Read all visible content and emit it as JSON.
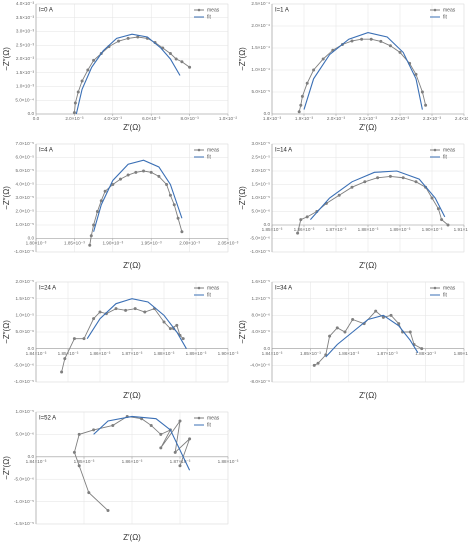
{
  "chart_data": [
    {
      "type": "line",
      "title": "I=0 A",
      "xlabel": "Z′(Ω)",
      "ylabel": "−Z″(Ω)",
      "xlim": [
        0,
        0.01
      ],
      "xticks": [
        {
          "value": 0,
          "label": "0.0"
        },
        {
          "value": 0.002,
          "label": "2.0×10⁻³"
        },
        {
          "value": 0.004,
          "label": "4.0×10⁻³"
        },
        {
          "value": 0.006,
          "label": "6.0×10⁻³"
        },
        {
          "value": 0.008,
          "label": "8.0×10⁻³"
        },
        {
          "value": 0.01,
          "label": "1.0×10⁻²"
        }
      ],
      "ylim": [
        0,
        0.004
      ],
      "yticks": [
        {
          "value": 0,
          "label": "0.0"
        },
        {
          "value": 0.0005,
          "label": "5.0×10⁻⁴"
        },
        {
          "value": 0.001,
          "label": "1.0×10⁻³"
        },
        {
          "value": 0.0015,
          "label": "1.5×10⁻³"
        },
        {
          "value": 0.002,
          "label": "2.0×10⁻³"
        },
        {
          "value": 0.0025,
          "label": "2.5×10⁻³"
        },
        {
          "value": 0.003,
          "label": "3.0×10⁻³"
        },
        {
          "value": 0.0035,
          "label": "3.5×10⁻³"
        },
        {
          "value": 0.004,
          "label": "4.0×10⁻³"
        }
      ],
      "grid": true,
      "legend": "upper right",
      "series": [
        {
          "name": "meas",
          "color": "#7f7f7f",
          "markers": true,
          "x": [
            0.002,
            0.00205,
            0.0022,
            0.0024,
            0.0027,
            0.003,
            0.0034,
            0.0038,
            0.0043,
            0.0048,
            0.0053,
            0.0058,
            0.0062,
            0.0066,
            0.007,
            0.0073,
            0.0076,
            0.008
          ],
          "values": [
            5e-05,
            0.0004,
            0.0008,
            0.0012,
            0.0016,
            0.00195,
            0.0022,
            0.00245,
            0.00265,
            0.00275,
            0.0028,
            0.00275,
            0.0026,
            0.0024,
            0.0022,
            0.002,
            0.0019,
            0.0017
          ]
        },
        {
          "name": "fit",
          "color": "#3a6fb5",
          "markers": false,
          "x": [
            0.0021,
            0.0024,
            0.0029,
            0.0035,
            0.0042,
            0.005,
            0.0058,
            0.0065,
            0.007,
            0.0075
          ],
          "values": [
            0.0,
            0.0009,
            0.0017,
            0.0023,
            0.00275,
            0.0029,
            0.0028,
            0.0024,
            0.002,
            0.0014
          ]
        }
      ]
    },
    {
      "type": "line",
      "title": "I=1 A",
      "xlabel": "Z′(Ω)",
      "ylabel": "−Z″(Ω)",
      "xlim": [
        0.0018,
        0.0024
      ],
      "xticks": [
        {
          "value": 0.0018,
          "label": "1.8×10⁻³"
        },
        {
          "value": 0.0019,
          "label": "1.9×10⁻³"
        },
        {
          "value": 0.002,
          "label": "2.0×10⁻³"
        },
        {
          "value": 0.0021,
          "label": "2.1×10⁻³"
        },
        {
          "value": 0.0022,
          "label": "2.2×10⁻³"
        },
        {
          "value": 0.0023,
          "label": "2.3×10⁻³"
        },
        {
          "value": 0.0024,
          "label": "2.4×10⁻³"
        }
      ],
      "ylim": [
        0,
        0.00025
      ],
      "yticks": [
        {
          "value": 0,
          "label": "0.0"
        },
        {
          "value": 5e-05,
          "label": "5.0×10⁻⁵"
        },
        {
          "value": 0.0001,
          "label": "1.0×10⁻⁴"
        },
        {
          "value": 0.00015,
          "label": "1.5×10⁻⁴"
        },
        {
          "value": 0.0002,
          "label": "2.0×10⁻⁴"
        },
        {
          "value": 0.00025,
          "label": "2.5×10⁻⁴"
        }
      ],
      "grid": true,
      "legend": "upper right",
      "series": [
        {
          "name": "meas",
          "color": "#7f7f7f",
          "markers": true,
          "x": [
            0.001885,
            0.00189,
            0.001895,
            0.00191,
            0.00193,
            0.00196,
            0.00199,
            0.00202,
            0.00205,
            0.00208,
            0.00211,
            0.00214,
            0.00217,
            0.0022,
            0.00223,
            0.00225,
            0.00227,
            0.00228
          ],
          "values": [
            5e-06,
            2e-05,
            4e-05,
            7e-05,
            0.0001,
            0.000125,
            0.000145,
            0.000158,
            0.000166,
            0.00017,
            0.00017,
            0.000165,
            0.000155,
            0.00014,
            0.000115,
            9e-05,
            5e-05,
            2e-05
          ]
        },
        {
          "name": "fit",
          "color": "#3a6fb5",
          "markers": false,
          "x": [
            0.0019,
            0.00193,
            0.00198,
            0.00204,
            0.0021,
            0.00216,
            0.00221,
            0.00225,
            0.00227
          ],
          "values": [
            1e-05,
            8e-05,
            0.000135,
            0.00017,
            0.000185,
            0.000175,
            0.00014,
            8e-05,
            1e-05
          ]
        }
      ]
    },
    {
      "type": "line",
      "title": "I=4 A",
      "xlabel": "Z′(Ω)",
      "ylabel": "−Z″(Ω)",
      "xlim": [
        0.0018,
        0.00205
      ],
      "xticks": [
        {
          "value": 0.0018,
          "label": "1.80×10⁻³"
        },
        {
          "value": 0.00185,
          "label": "1.85×10⁻³"
        },
        {
          "value": 0.0019,
          "label": "1.90×10⁻³"
        },
        {
          "value": 0.00195,
          "label": "1.95×10⁻³"
        },
        {
          "value": 0.002,
          "label": "2.00×10⁻³"
        },
        {
          "value": 0.00205,
          "label": "2.05×10⁻³"
        }
      ],
      "ylim": [
        -1e-05,
        7e-05
      ],
      "yticks": [
        {
          "value": -1e-05,
          "label": "-1.0×10⁻⁵"
        },
        {
          "value": 0,
          "label": "0.0"
        },
        {
          "value": 1e-05,
          "label": "1.0×10⁻⁵"
        },
        {
          "value": 2e-05,
          "label": "2.0×10⁻⁵"
        },
        {
          "value": 3e-05,
          "label": "3.0×10⁻⁵"
        },
        {
          "value": 4e-05,
          "label": "4.0×10⁻⁵"
        },
        {
          "value": 5e-05,
          "label": "5.0×10⁻⁵"
        },
        {
          "value": 6e-05,
          "label": "6.0×10⁻⁵"
        },
        {
          "value": 7e-05,
          "label": "7.0×10⁻⁵"
        }
      ],
      "grid": true,
      "legend": "upper right",
      "series": [
        {
          "name": "meas",
          "color": "#7f7f7f",
          "markers": true,
          "x": [
            0.00187,
            0.001872,
            0.001875,
            0.00188,
            0.001885,
            0.00189,
            0.0019,
            0.00191,
            0.00192,
            0.00193,
            0.00194,
            0.00195,
            0.00196,
            0.00197,
            0.001975,
            0.00198,
            0.001985,
            0.00199
          ],
          "values": [
            -5e-06,
            2e-06,
            1e-05,
            2e-05,
            2.8e-05,
            3.5e-05,
            4e-05,
            4.4e-05,
            4.7e-05,
            4.9e-05,
            5e-05,
            4.9e-05,
            4.6e-05,
            4e-05,
            3.2e-05,
            2.5e-05,
            1.5e-05,
            5e-06
          ]
        },
        {
          "name": "fit",
          "color": "#3a6fb5",
          "markers": false,
          "x": [
            0.001875,
            0.001885,
            0.0019,
            0.00192,
            0.00194,
            0.00196,
            0.001975,
            0.00199
          ],
          "values": [
            5e-06,
            2.5e-05,
            4.3e-05,
            5.5e-05,
            5.8e-05,
            5.3e-05,
            4e-05,
            1.5e-05
          ]
        }
      ]
    },
    {
      "type": "line",
      "title": "I=14 A",
      "xlabel": "Z′(Ω)",
      "ylabel": "−Z″(Ω)",
      "xlim": [
        0.00185,
        0.00191
      ],
      "xticks": [
        {
          "value": 0.00185,
          "label": "1.85×10⁻³"
        },
        {
          "value": 0.00186,
          "label": "1.86×10⁻³"
        },
        {
          "value": 0.00187,
          "label": "1.87×10⁻³"
        },
        {
          "value": 0.00188,
          "label": "1.88×10⁻³"
        },
        {
          "value": 0.00189,
          "label": "1.89×10⁻³"
        },
        {
          "value": 0.0019,
          "label": "1.90×10⁻³"
        },
        {
          "value": 0.00191,
          "label": "1.91×10⁻³"
        }
      ],
      "ylim": [
        -1e-05,
        3e-05
      ],
      "yticks": [
        {
          "value": -1e-05,
          "label": "-1.0×10⁻⁵"
        },
        {
          "value": -5e-06,
          "label": "-5.0×10⁻⁶"
        },
        {
          "value": 0,
          "label": "0.0"
        },
        {
          "value": 5e-06,
          "label": "5.0×10⁻⁶"
        },
        {
          "value": 1e-05,
          "label": "1.0×10⁻⁵"
        },
        {
          "value": 1.5e-05,
          "label": "1.5×10⁻⁵"
        },
        {
          "value": 2e-05,
          "label": "2.0×10⁻⁵"
        },
        {
          "value": 2.5e-05,
          "label": "2.5×10⁻⁵"
        },
        {
          "value": 3e-05,
          "label": "3.0×10⁻⁵"
        }
      ],
      "grid": true,
      "legend": "upper right",
      "series": [
        {
          "name": "meas",
          "color": "#7f7f7f",
          "markers": true,
          "x": [
            0.001858,
            0.001859,
            0.001861,
            0.001864,
            0.001867,
            0.001871,
            0.001875,
            0.001879,
            0.001883,
            0.001887,
            0.001891,
            0.001895,
            0.001898,
            0.0019,
            0.001902,
            0.001903,
            0.001905
          ],
          "values": [
            -3e-06,
            2e-06,
            3e-06,
            5e-06,
            8e-06,
            1.1e-05,
            1.4e-05,
            1.6e-05,
            1.75e-05,
            1.8e-05,
            1.75e-05,
            1.6e-05,
            1.4e-05,
            1e-05,
            6e-06,
            2e-06,
            0.0
          ]
        },
        {
          "name": "fit",
          "color": "#3a6fb5",
          "markers": false,
          "x": [
            0.001862,
            0.001868,
            0.001875,
            0.001882,
            0.001889,
            0.001896,
            0.001901,
            0.001904
          ],
          "values": [
            2e-06,
            1e-05,
            1.6e-05,
            1.95e-05,
            2e-05,
            1.7e-05,
            1e-05,
            3e-06
          ]
        }
      ]
    },
    {
      "type": "line",
      "title": "I=24 A",
      "xlabel": "Z′(Ω)",
      "ylabel": "−Z″(Ω)",
      "xlim": [
        0.00184,
        0.0019
      ],
      "xticks": [
        {
          "value": 0.00184,
          "label": "1.84×10⁻³"
        },
        {
          "value": 0.00185,
          "label": "1.85×10⁻³"
        },
        {
          "value": 0.00186,
          "label": "1.86×10⁻³"
        },
        {
          "value": 0.00187,
          "label": "1.87×10⁻³"
        },
        {
          "value": 0.00188,
          "label": "1.88×10⁻³"
        },
        {
          "value": 0.00189,
          "label": "1.89×10⁻³"
        },
        {
          "value": 0.0019,
          "label": "1.90×10⁻³"
        }
      ],
      "ylim": [
        -1e-05,
        2e-05
      ],
      "yticks": [
        {
          "value": -1e-05,
          "label": "-1.0×10⁻⁵"
        },
        {
          "value": -5e-06,
          "label": "-5.0×10⁻⁶"
        },
        {
          "value": 0,
          "label": "0.0"
        },
        {
          "value": 5e-06,
          "label": "5.0×10⁻⁶"
        },
        {
          "value": 1e-05,
          "label": "1.0×10⁻⁵"
        },
        {
          "value": 1.5e-05,
          "label": "1.5×10⁻⁵"
        },
        {
          "value": 2e-05,
          "label": "2.0×10⁻⁵"
        }
      ],
      "grid": true,
      "legend": "upper right",
      "series": [
        {
          "name": "meas",
          "color": "#7f7f7f",
          "markers": true,
          "x": [
            0.001848,
            0.001849,
            0.001852,
            0.001855,
            0.001858,
            0.00186,
            0.001862,
            0.001865,
            0.001868,
            0.001871,
            0.001874,
            0.001877,
            0.00188,
            0.001882,
            0.001884,
            0.001885,
            0.001883,
            0.001886
          ],
          "values": [
            -7e-06,
            -3e-06,
            3e-06,
            3e-06,
            9e-06,
            1.1e-05,
            1.05e-05,
            1.2e-05,
            1.15e-05,
            1.2e-05,
            1.1e-05,
            1.2e-05,
            8e-06,
            6e-06,
            7e-06,
            4e-06,
            6e-06,
            3e-06
          ]
        },
        {
          "name": "fit",
          "color": "#3a6fb5",
          "markers": false,
          "x": [
            0.001856,
            0.00186,
            0.001865,
            0.00187,
            0.001875,
            0.00188,
            0.001884,
            0.001887
          ],
          "values": [
            3e-06,
            9e-06,
            1.35e-05,
            1.5e-05,
            1.4e-05,
            1e-05,
            5e-06,
            0.0
          ]
        }
      ]
    },
    {
      "type": "line",
      "title": "I=34 A",
      "xlabel": "Z′(Ω)",
      "ylabel": "−Z″(Ω)",
      "xlim": [
        0.00184,
        0.00189
      ],
      "xticks": [
        {
          "value": 0.00184,
          "label": "1.84×10⁻³"
        },
        {
          "value": 0.00185,
          "label": "1.85×10⁻³"
        },
        {
          "value": 0.00186,
          "label": "1.86×10⁻³"
        },
        {
          "value": 0.00187,
          "label": "1.87×10⁻³"
        },
        {
          "value": 0.00188,
          "label": "1.88×10⁻³"
        },
        {
          "value": 0.00189,
          "label": "1.89×10⁻³"
        }
      ],
      "ylim": [
        -8e-06,
        1.6e-05
      ],
      "yticks": [
        {
          "value": -8e-06,
          "label": "-8.0×10⁻⁶"
        },
        {
          "value": -4e-06,
          "label": "-4.0×10⁻⁶"
        },
        {
          "value": 0,
          "label": "0.0"
        },
        {
          "value": 4e-06,
          "label": "4.0×10⁻⁶"
        },
        {
          "value": 8e-06,
          "label": "8.0×10⁻⁶"
        },
        {
          "value": 1.2e-05,
          "label": "1.2×10⁻⁵"
        },
        {
          "value": 1.6e-05,
          "label": "1.6×10⁻⁵"
        }
      ],
      "grid": true,
      "legend": "upper right",
      "series": [
        {
          "name": "meas",
          "color": "#7f7f7f",
          "markers": true,
          "x": [
            0.001851,
            0.001852,
            0.001854,
            0.001855,
            0.001857,
            0.001859,
            0.001861,
            0.001864,
            0.001867,
            0.001869,
            0.001871,
            0.001873,
            0.001874,
            0.001876,
            0.001877,
            0.001879
          ],
          "values": [
            -4e-06,
            -3.5e-06,
            -1.5e-06,
            3e-06,
            5e-06,
            4e-06,
            7e-06,
            6e-06,
            9e-06,
            7.5e-06,
            8e-06,
            6e-06,
            4e-06,
            4e-06,
            1e-06,
            0.0
          ]
        },
        {
          "name": "fit",
          "color": "#3a6fb5",
          "markers": false,
          "x": [
            0.001854,
            0.001857,
            0.001861,
            0.001865,
            0.001869,
            0.001873,
            0.001876,
            0.001878
          ],
          "values": [
            -2e-06,
            1e-06,
            4e-06,
            7e-06,
            8e-06,
            5.5e-06,
            2e-06,
            -1e-06
          ]
        }
      ]
    },
    {
      "type": "line",
      "title": "I=52 A",
      "xlabel": "Z′(Ω)",
      "ylabel": "−Z″(Ω)",
      "xlim": [
        0.00184,
        0.00188
      ],
      "xticks": [
        {
          "value": 0.00184,
          "label": "1.84×10⁻³"
        },
        {
          "value": 0.00185,
          "label": "1.85×10⁻³"
        },
        {
          "value": 0.00186,
          "label": "1.86×10⁻³"
        },
        {
          "value": 0.00187,
          "label": "1.87×10⁻³"
        },
        {
          "value": 0.00188,
          "label": "1.88×10⁻³"
        }
      ],
      "ylim": [
        -1.5e-05,
        1e-05
      ],
      "yticks": [
        {
          "value": -1.5e-05,
          "label": "-1.5×10⁻⁵"
        },
        {
          "value": -1e-05,
          "label": "-1.0×10⁻⁵"
        },
        {
          "value": -5e-06,
          "label": "-5.0×10⁻⁶"
        },
        {
          "value": 0,
          "label": "0.0"
        },
        {
          "value": 5e-06,
          "label": "5.0×10⁻⁶"
        },
        {
          "value": 1e-05,
          "label": "1.0×10⁻⁵"
        }
      ],
      "grid": true,
      "legend": "upper right",
      "series": [
        {
          "name": "meas",
          "color": "#7f7f7f",
          "markers": true,
          "x": [
            0.001855,
            0.001851,
            0.001849,
            0.001848,
            0.001849,
            0.001852,
            0.001856,
            0.001859,
            0.001862,
            0.001864,
            0.001866,
            0.001868,
            0.001866,
            0.00187,
            0.001869,
            0.001872,
            0.00187
          ],
          "values": [
            -1.2e-05,
            -8e-06,
            -2e-06,
            1e-06,
            5e-06,
            6e-06,
            7e-06,
            9e-06,
            8.5e-06,
            7e-06,
            5e-06,
            6e-06,
            2e-06,
            8e-06,
            1e-06,
            4e-06,
            -2e-06
          ]
        },
        {
          "name": "fit",
          "color": "#3a6fb5",
          "markers": false,
          "x": [
            0.001852,
            0.001855,
            0.00186,
            0.001865,
            0.001868,
            0.001872
          ],
          "values": [
            5e-06,
            8e-06,
            9e-06,
            8.5e-06,
            6e-06,
            -3e-06
          ]
        }
      ]
    }
  ]
}
